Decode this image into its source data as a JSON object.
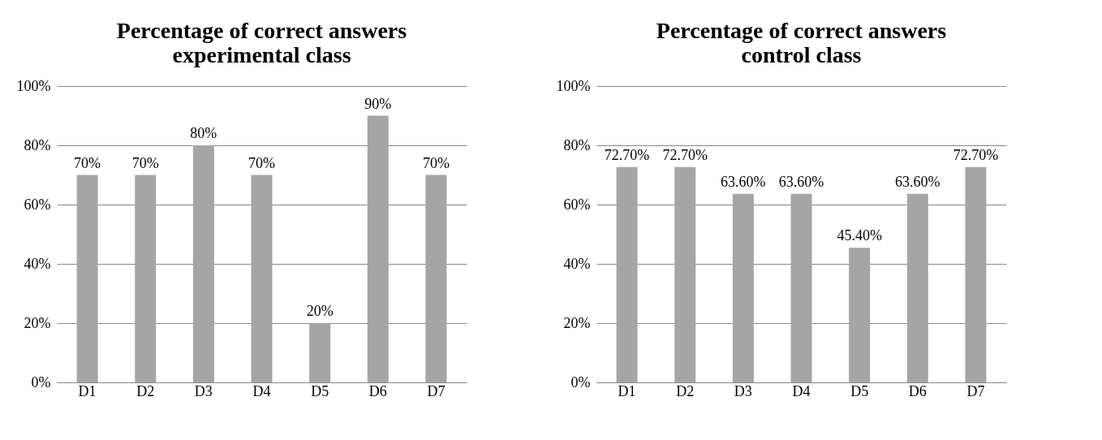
{
  "chart_data": [
    {
      "type": "bar",
      "title": "Percentage of correct answers experimental class",
      "categories": [
        "D1",
        "D2",
        "D3",
        "D4",
        "D5",
        "D6",
        "D7"
      ],
      "values": [
        70,
        70,
        80,
        70,
        20,
        90,
        70
      ],
      "value_labels": [
        "70%",
        "70%",
        "80%",
        "70%",
        "20%",
        "90%",
        "70%"
      ],
      "color": "#a5a5a5",
      "ylim": [
        0,
        100
      ],
      "yticks": [
        {
          "value": 0,
          "label": "0%"
        },
        {
          "value": 20,
          "label": "20%"
        },
        {
          "value": 40,
          "label": "40%"
        },
        {
          "value": 60,
          "label": "60%"
        },
        {
          "value": 80,
          "label": "80%"
        },
        {
          "value": 100,
          "label": "100%"
        }
      ],
      "grid": "y"
    },
    {
      "type": "bar",
      "title": "Percentage of correct answers control class",
      "categories": [
        "D1",
        "D2",
        "D3",
        "D4",
        "D5",
        "D6",
        "D7"
      ],
      "values": [
        72.7,
        72.7,
        63.6,
        63.6,
        45.4,
        63.6,
        72.7
      ],
      "value_labels": [
        "72.70%",
        "72.70%",
        "63.60%",
        "63.60%",
        "45.40%",
        "63.60%",
        "72.70%"
      ],
      "color": "#a5a5a5",
      "ylim": [
        0,
        100
      ],
      "yticks": [
        {
          "value": 0,
          "label": "0%"
        },
        {
          "value": 20,
          "label": "20%"
        },
        {
          "value": 40,
          "label": "40%"
        },
        {
          "value": 60,
          "label": "60%"
        },
        {
          "value": 80,
          "label": "80%"
        },
        {
          "value": 100,
          "label": "100%"
        }
      ],
      "grid": "y"
    }
  ]
}
